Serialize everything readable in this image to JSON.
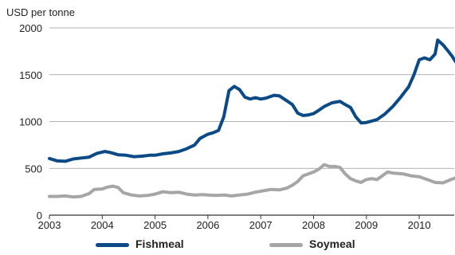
{
  "chart_data": {
    "type": "line",
    "ylabel": "USD per tonne",
    "ylim": [
      0,
      2000
    ],
    "yticks": [
      0,
      500,
      1000,
      1500,
      2000
    ],
    "xlim": [
      2003,
      2010.75
    ],
    "xticks": [
      "2003",
      "2004",
      "2005",
      "2006",
      "2007",
      "2008",
      "2009",
      "2010"
    ],
    "grid": "horizontal",
    "legend_position": "bottom",
    "series": [
      {
        "name": "Fishmeal",
        "color": "#0b4a86",
        "points": [
          [
            2003.0,
            605
          ],
          [
            2003.15,
            580
          ],
          [
            2003.3,
            575
          ],
          [
            2003.45,
            600
          ],
          [
            2003.6,
            610
          ],
          [
            2003.75,
            620
          ],
          [
            2003.9,
            660
          ],
          [
            2004.05,
            680
          ],
          [
            2004.15,
            670
          ],
          [
            2004.3,
            645
          ],
          [
            2004.45,
            640
          ],
          [
            2004.6,
            625
          ],
          [
            2004.75,
            630
          ],
          [
            2004.9,
            640
          ],
          [
            2005.0,
            640
          ],
          [
            2005.15,
            655
          ],
          [
            2005.3,
            665
          ],
          [
            2005.45,
            680
          ],
          [
            2005.6,
            710
          ],
          [
            2005.75,
            750
          ],
          [
            2005.85,
            820
          ],
          [
            2006.0,
            865
          ],
          [
            2006.1,
            880
          ],
          [
            2006.2,
            905
          ],
          [
            2006.3,
            1050
          ],
          [
            2006.4,
            1330
          ],
          [
            2006.5,
            1375
          ],
          [
            2006.6,
            1340
          ],
          [
            2006.7,
            1260
          ],
          [
            2006.8,
            1240
          ],
          [
            2006.9,
            1255
          ],
          [
            2007.0,
            1240
          ],
          [
            2007.1,
            1250
          ],
          [
            2007.25,
            1280
          ],
          [
            2007.35,
            1275
          ],
          [
            2007.5,
            1220
          ],
          [
            2007.6,
            1180
          ],
          [
            2007.7,
            1090
          ],
          [
            2007.8,
            1065
          ],
          [
            2007.9,
            1070
          ],
          [
            2008.0,
            1085
          ],
          [
            2008.1,
            1120
          ],
          [
            2008.2,
            1160
          ],
          [
            2008.35,
            1200
          ],
          [
            2008.5,
            1215
          ],
          [
            2008.6,
            1180
          ],
          [
            2008.7,
            1150
          ],
          [
            2008.8,
            1050
          ],
          [
            2008.9,
            985
          ],
          [
            2009.0,
            990
          ],
          [
            2009.1,
            1005
          ],
          [
            2009.2,
            1020
          ],
          [
            2009.35,
            1080
          ],
          [
            2009.5,
            1160
          ],
          [
            2009.65,
            1260
          ],
          [
            2009.8,
            1370
          ],
          [
            2009.9,
            1500
          ],
          [
            2010.0,
            1660
          ],
          [
            2010.1,
            1680
          ],
          [
            2010.2,
            1660
          ],
          [
            2010.3,
            1720
          ],
          [
            2010.35,
            1870
          ],
          [
            2010.45,
            1820
          ],
          [
            2010.55,
            1750
          ],
          [
            2010.62,
            1700
          ],
          [
            2010.7,
            1630
          ],
          [
            2010.75,
            1610
          ]
        ]
      },
      {
        "name": "Soymeal",
        "color": "#a6a6a6",
        "points": [
          [
            2003.0,
            200
          ],
          [
            2003.15,
            200
          ],
          [
            2003.3,
            205
          ],
          [
            2003.45,
            195
          ],
          [
            2003.6,
            200
          ],
          [
            2003.75,
            230
          ],
          [
            2003.85,
            275
          ],
          [
            2004.0,
            280
          ],
          [
            2004.1,
            300
          ],
          [
            2004.2,
            310
          ],
          [
            2004.3,
            295
          ],
          [
            2004.4,
            240
          ],
          [
            2004.55,
            215
          ],
          [
            2004.7,
            205
          ],
          [
            2004.85,
            210
          ],
          [
            2005.0,
            225
          ],
          [
            2005.15,
            250
          ],
          [
            2005.3,
            240
          ],
          [
            2005.45,
            245
          ],
          [
            2005.6,
            225
          ],
          [
            2005.75,
            215
          ],
          [
            2005.9,
            220
          ],
          [
            2006.0,
            215
          ],
          [
            2006.15,
            210
          ],
          [
            2006.3,
            215
          ],
          [
            2006.45,
            205
          ],
          [
            2006.6,
            215
          ],
          [
            2006.75,
            225
          ],
          [
            2006.9,
            245
          ],
          [
            2007.05,
            260
          ],
          [
            2007.2,
            275
          ],
          [
            2007.35,
            270
          ],
          [
            2007.5,
            290
          ],
          [
            2007.6,
            320
          ],
          [
            2007.7,
            360
          ],
          [
            2007.8,
            420
          ],
          [
            2007.9,
            440
          ],
          [
            2008.0,
            460
          ],
          [
            2008.1,
            490
          ],
          [
            2008.2,
            540
          ],
          [
            2008.3,
            520
          ],
          [
            2008.4,
            520
          ],
          [
            2008.5,
            510
          ],
          [
            2008.6,
            440
          ],
          [
            2008.7,
            390
          ],
          [
            2008.8,
            365
          ],
          [
            2008.9,
            350
          ],
          [
            2009.0,
            380
          ],
          [
            2009.1,
            390
          ],
          [
            2009.2,
            380
          ],
          [
            2009.3,
            420
          ],
          [
            2009.4,
            460
          ],
          [
            2009.5,
            450
          ],
          [
            2009.6,
            445
          ],
          [
            2009.7,
            440
          ],
          [
            2009.85,
            420
          ],
          [
            2010.0,
            410
          ],
          [
            2010.15,
            380
          ],
          [
            2010.3,
            350
          ],
          [
            2010.45,
            345
          ],
          [
            2010.6,
            380
          ],
          [
            2010.75,
            410
          ]
        ]
      }
    ]
  }
}
